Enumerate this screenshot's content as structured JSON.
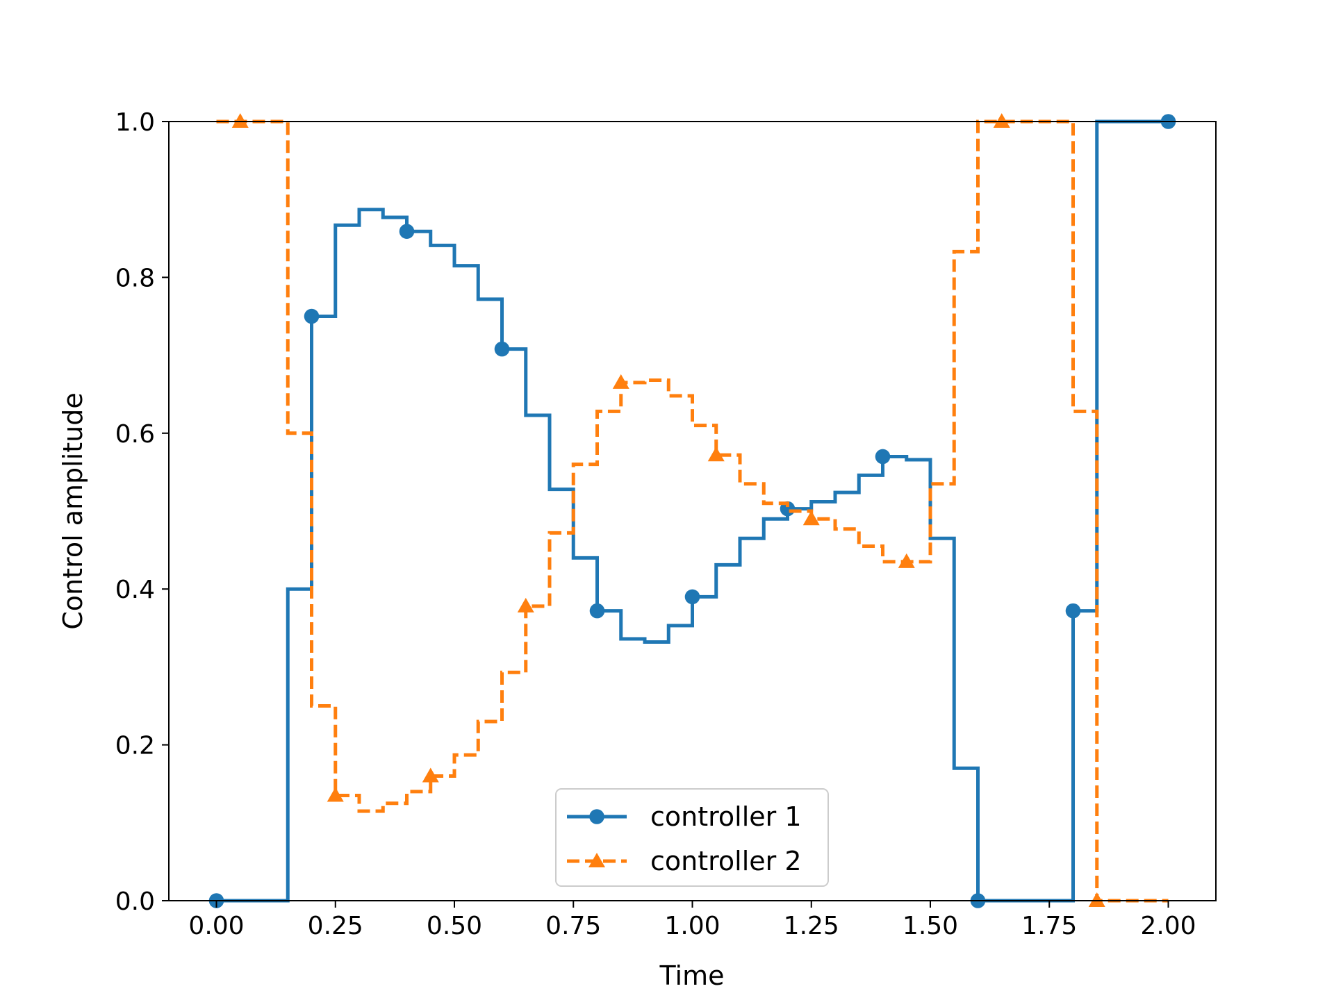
{
  "chart_data": {
    "type": "line",
    "step": "post",
    "title": "",
    "xlabel": "Time",
    "ylabel": "Control amplitude",
    "xlim": [
      -0.1,
      2.1
    ],
    "ylim": [
      0.0,
      1.0
    ],
    "grid": false,
    "legend_position": "bottom-center",
    "x_ticks": [
      "0.00",
      "0.25",
      "0.50",
      "0.75",
      "1.00",
      "1.25",
      "1.50",
      "1.75",
      "2.00"
    ],
    "y_ticks": [
      "0.0",
      "0.2",
      "0.4",
      "0.6",
      "0.8",
      "1.0"
    ],
    "x": [
      0.0,
      0.05,
      0.1,
      0.15,
      0.2,
      0.25,
      0.3,
      0.35,
      0.4,
      0.45,
      0.5,
      0.55,
      0.6,
      0.65,
      0.7,
      0.75,
      0.8,
      0.85,
      0.9,
      0.95,
      1.0,
      1.05,
      1.1,
      1.15,
      1.2,
      1.25,
      1.3,
      1.35,
      1.4,
      1.45,
      1.5,
      1.55,
      1.6,
      1.65,
      1.7,
      1.75,
      1.8,
      1.85,
      1.9,
      1.95,
      2.0
    ],
    "series": [
      {
        "name": "controller 1",
        "color": "#1f77b4",
        "marker": "circle",
        "linestyle": "solid",
        "values": [
          0.0,
          0.0,
          0.0,
          0.4,
          0.75,
          0.867,
          0.887,
          0.877,
          0.859,
          0.841,
          0.815,
          0.772,
          0.708,
          0.623,
          0.528,
          0.44,
          0.372,
          0.336,
          0.332,
          0.353,
          0.39,
          0.431,
          0.465,
          0.49,
          0.503,
          0.512,
          0.524,
          0.546,
          0.57,
          0.566,
          0.465,
          0.17,
          0.0,
          0.0,
          0.0,
          0.0,
          0.372,
          1.0,
          1.0,
          1.0,
          1.0
        ]
      },
      {
        "name": "controller 2",
        "color": "#ff7f0e",
        "marker": "triangle",
        "linestyle": "dashed",
        "values": [
          1.0,
          1.0,
          1.0,
          0.6,
          0.25,
          0.135,
          0.115,
          0.125,
          0.14,
          0.16,
          0.187,
          0.23,
          0.293,
          0.378,
          0.472,
          0.56,
          0.628,
          0.665,
          0.668,
          0.648,
          0.61,
          0.572,
          0.535,
          0.51,
          0.5,
          0.49,
          0.477,
          0.455,
          0.435,
          0.435,
          0.535,
          0.833,
          1.0,
          1.0,
          1.0,
          1.0,
          0.628,
          0.0,
          0.0,
          0.0,
          0.0
        ]
      }
    ]
  }
}
